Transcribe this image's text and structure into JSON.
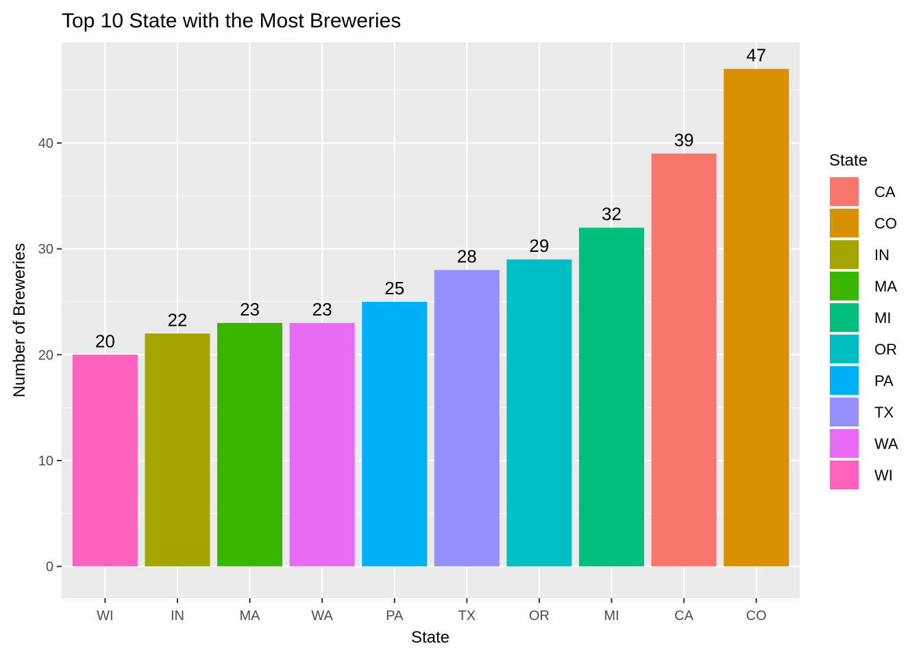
{
  "chart_data": {
    "type": "bar",
    "title": "Top 10 State with the Most Breweries",
    "xlabel": "State",
    "ylabel": "Number of Breweries",
    "categories": [
      "WI",
      "IN",
      "MA",
      "WA",
      "PA",
      "TX",
      "OR",
      "MI",
      "CA",
      "CO"
    ],
    "values": [
      20,
      22,
      23,
      23,
      25,
      28,
      29,
      32,
      39,
      47
    ],
    "ylim": [
      -3,
      49.5
    ],
    "yticks": [
      0,
      10,
      20,
      30,
      40
    ],
    "grid": true,
    "legend": {
      "title": "State",
      "placement": "right",
      "entries": [
        "CA",
        "CO",
        "IN",
        "MA",
        "MI",
        "OR",
        "PA",
        "TX",
        "WA",
        "WI"
      ]
    },
    "colors": {
      "CA": "#F8766D",
      "CO": "#D89000",
      "IN": "#A3A500",
      "MA": "#39B600",
      "MI": "#00BF7D",
      "OR": "#00BFC4",
      "PA": "#00B0F6",
      "TX": "#9590FF",
      "WA": "#E76BF3",
      "WI": "#FF62BC"
    },
    "panel_background": "#EBEBEB"
  }
}
